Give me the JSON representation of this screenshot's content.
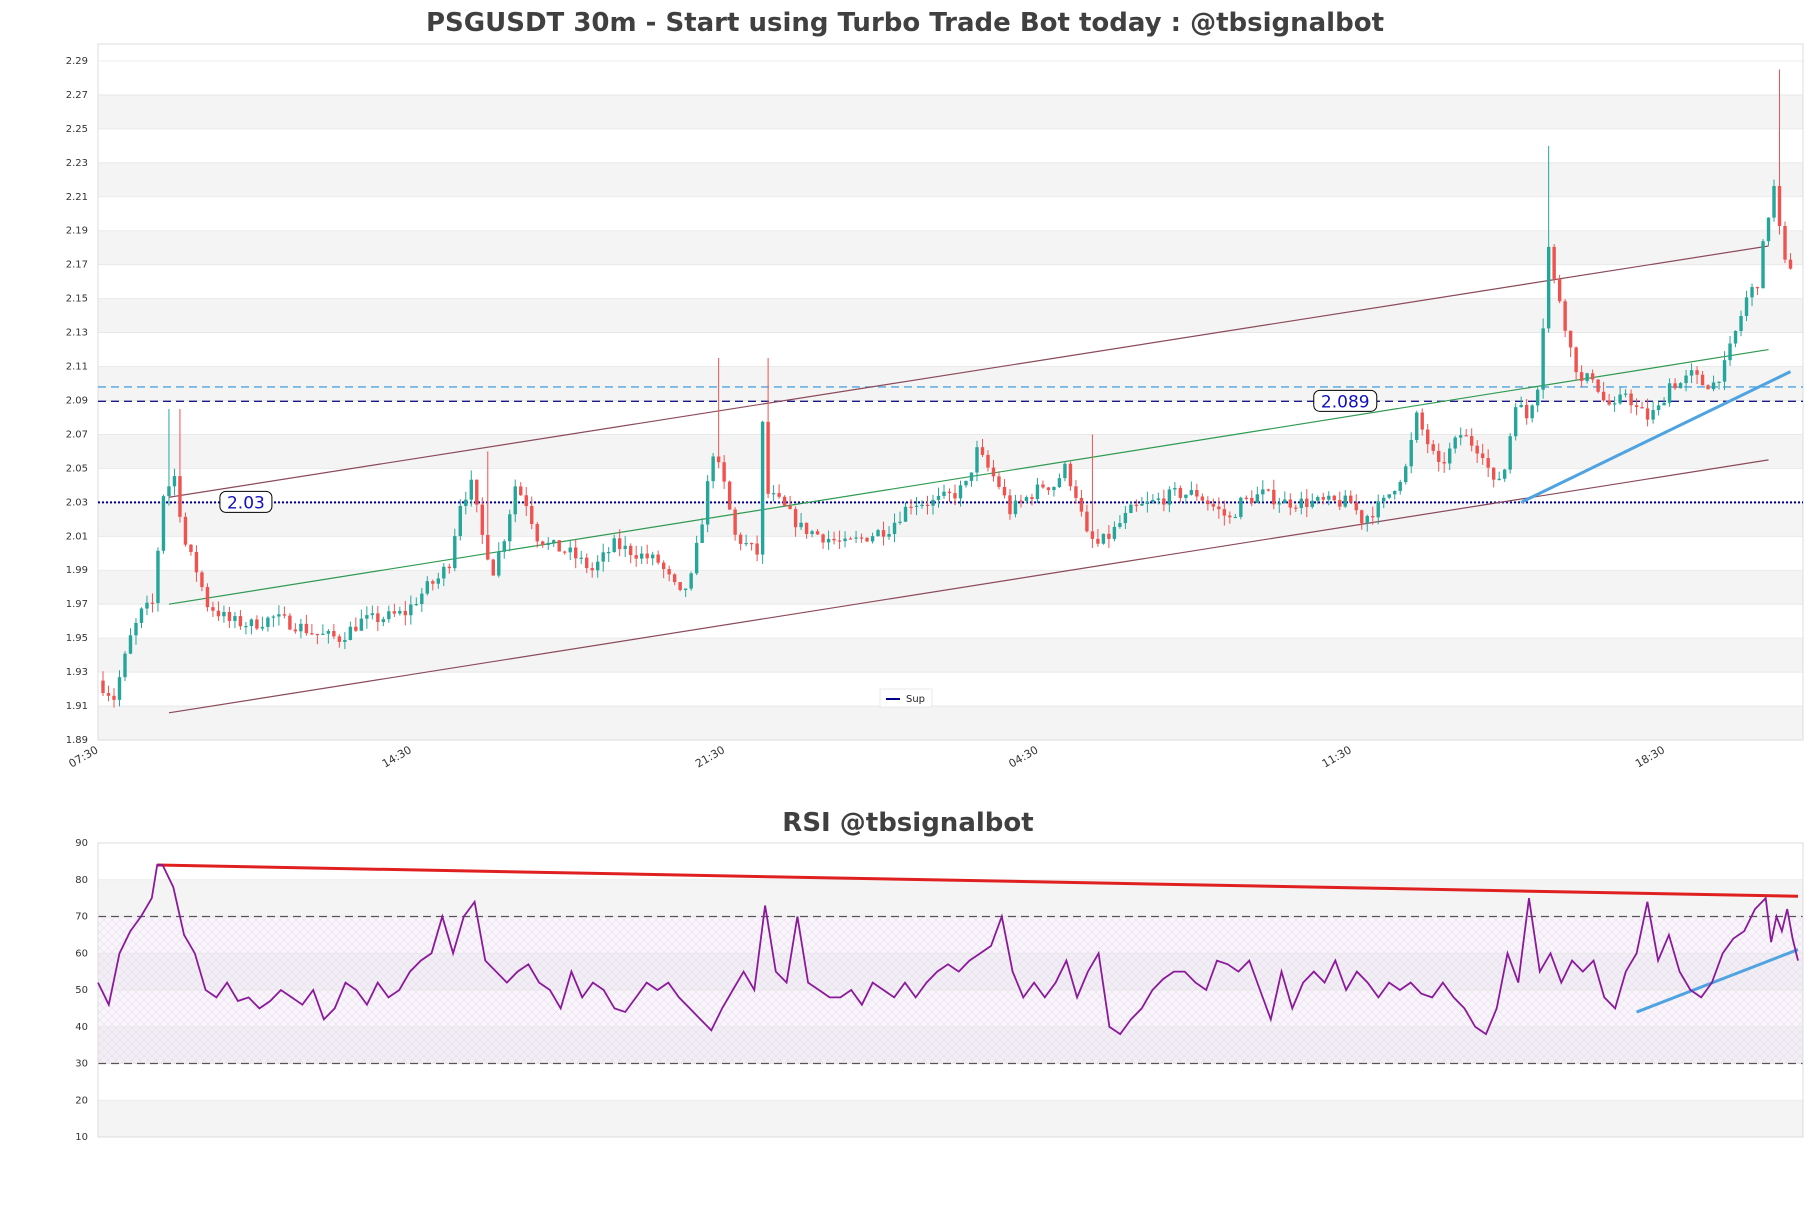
{
  "chart_data": [
    {
      "type": "candlestick",
      "title": "PSGUSDT 30m - Start using Turbo Trade Bot today : @tbsignalbot",
      "ylim": [
        1.89,
        2.3
      ],
      "yticks": [
        "1.89",
        "1.91",
        "1.93",
        "1.95",
        "1.97",
        "1.99",
        "2.01",
        "2.03",
        "2.05",
        "2.07",
        "2.09",
        "2.11",
        "2.13",
        "2.15",
        "2.17",
        "2.19",
        "2.21",
        "2.23",
        "2.25",
        "2.27",
        "2.29"
      ],
      "x_count": 288,
      "xticks": [
        {
          "i": 0,
          "label": "07:30"
        },
        {
          "i": 57,
          "label": "14:30"
        },
        {
          "i": 114,
          "label": "21:30"
        },
        {
          "i": 171,
          "label": "04:30"
        },
        {
          "i": 228,
          "label": "11:30"
        },
        {
          "i": 285,
          "label": "18:30"
        }
      ],
      "anchors": [
        [
          0,
          1.925
        ],
        [
          3,
          1.915
        ],
        [
          6,
          1.95
        ],
        [
          8,
          1.965
        ],
        [
          10,
          1.97
        ],
        [
          12,
          2.035
        ],
        [
          14,
          2.045
        ],
        [
          16,
          2.005
        ],
        [
          18,
          1.99
        ],
        [
          20,
          1.97
        ],
        [
          24,
          1.96
        ],
        [
          28,
          1.958
        ],
        [
          32,
          1.962
        ],
        [
          36,
          1.958
        ],
        [
          40,
          1.952
        ],
        [
          44,
          1.95
        ],
        [
          48,
          1.96
        ],
        [
          52,
          1.962
        ],
        [
          56,
          1.965
        ],
        [
          60,
          1.98
        ],
        [
          62,
          1.985
        ],
        [
          64,
          1.995
        ],
        [
          66,
          2.03
        ],
        [
          68,
          2.04
        ],
        [
          70,
          2.01
        ],
        [
          72,
          1.99
        ],
        [
          74,
          2.01
        ],
        [
          76,
          2.04
        ],
        [
          78,
          2.03
        ],
        [
          80,
          2.01
        ],
        [
          82,
          2.005
        ],
        [
          86,
          2.0
        ],
        [
          90,
          1.99
        ],
        [
          94,
          2.005
        ],
        [
          98,
          2.0
        ],
        [
          102,
          1.995
        ],
        [
          104,
          1.985
        ],
        [
          106,
          1.975
        ],
        [
          108,
          1.985
        ],
        [
          110,
          2.02
        ],
        [
          112,
          2.06
        ],
        [
          114,
          2.04
        ],
        [
          116,
          2.01
        ],
        [
          118,
          2.005
        ],
        [
          120,
          2.0
        ],
        [
          121,
          2.075
        ],
        [
          122,
          2.035
        ],
        [
          124,
          2.03
        ],
        [
          128,
          2.015
        ],
        [
          132,
          2.01
        ],
        [
          136,
          2.005
        ],
        [
          140,
          2.01
        ],
        [
          144,
          2.015
        ],
        [
          148,
          2.03
        ],
        [
          152,
          2.03
        ],
        [
          156,
          2.035
        ],
        [
          158,
          2.04
        ],
        [
          160,
          2.06
        ],
        [
          162,
          2.05
        ],
        [
          164,
          2.04
        ],
        [
          166,
          2.025
        ],
        [
          168,
          2.03
        ],
        [
          172,
          2.04
        ],
        [
          174,
          2.04
        ],
        [
          176,
          2.05
        ],
        [
          178,
          2.035
        ],
        [
          180,
          2.01
        ],
        [
          182,
          2.005
        ],
        [
          184,
          2.01
        ],
        [
          188,
          2.025
        ],
        [
          192,
          2.03
        ],
        [
          196,
          2.035
        ],
        [
          200,
          2.035
        ],
        [
          204,
          2.025
        ],
        [
          206,
          2.02
        ],
        [
          208,
          2.03
        ],
        [
          212,
          2.035
        ],
        [
          216,
          2.03
        ],
        [
          220,
          2.03
        ],
        [
          224,
          2.03
        ],
        [
          228,
          2.03
        ],
        [
          230,
          2.02
        ],
        [
          232,
          2.025
        ],
        [
          234,
          2.03
        ],
        [
          236,
          2.04
        ],
        [
          238,
          2.05
        ],
        [
          240,
          2.08
        ],
        [
          242,
          2.065
        ],
        [
          244,
          2.05
        ],
        [
          246,
          2.06
        ],
        [
          248,
          2.07
        ],
        [
          250,
          2.065
        ],
        [
          252,
          2.06
        ],
        [
          254,
          2.04
        ],
        [
          256,
          2.05
        ],
        [
          258,
          2.09
        ],
        [
          260,
          2.08
        ],
        [
          262,
          2.1
        ],
        [
          263,
          2.135
        ],
        [
          264,
          2.18
        ],
        [
          265,
          2.16
        ],
        [
          266,
          2.15
        ],
        [
          268,
          2.12
        ],
        [
          270,
          2.1
        ],
        [
          272,
          2.105
        ],
        [
          274,
          2.09
        ],
        [
          276,
          2.085
        ],
        [
          278,
          2.095
        ],
        [
          280,
          2.085
        ],
        [
          282,
          2.08
        ],
        [
          284,
          2.085
        ],
        [
          286,
          2.1
        ],
        [
          288,
          2.1
        ],
        [
          290,
          2.105
        ],
        [
          292,
          2.1
        ],
        [
          294,
          2.1
        ],
        [
          296,
          2.11
        ],
        [
          298,
          2.13
        ],
        [
          300,
          2.15
        ],
        [
          302,
          2.16
        ],
        [
          304,
          2.2
        ],
        [
          305,
          2.215
        ],
        [
          306,
          2.19
        ],
        [
          307,
          2.17
        ]
      ],
      "spikes": [
        [
          12,
          2.085
        ],
        [
          14,
          2.085
        ],
        [
          70,
          2.06
        ],
        [
          112,
          2.115
        ],
        [
          121,
          2.115
        ],
        [
          180,
          2.07
        ],
        [
          263,
          2.24
        ],
        [
          305,
          2.285
        ]
      ],
      "levels": [
        {
          "y": 2.03,
          "color": "#00008b",
          "style": "dotted",
          "label": "2.03",
          "label_i": 26
        },
        {
          "y": 2.0895,
          "color": "#1a1a8b",
          "style": "dashed",
          "label": "2.089",
          "label_i": 226
        },
        {
          "y": 2.098,
          "color": "#4fa3e0",
          "style": "dashed",
          "label": ""
        }
      ],
      "trendlines": [
        {
          "x1": 12,
          "y1": 2.033,
          "x2": 303,
          "y2": 2.181,
          "color": "#8b4a5a"
        },
        {
          "x1": 12,
          "y1": 1.906,
          "x2": 303,
          "y2": 2.055,
          "color": "#8b4a5a"
        },
        {
          "x1": 12,
          "y1": 1.97,
          "x2": 303,
          "y2": 2.12,
          "color": "#2e9a50"
        },
        {
          "x1": 258,
          "y1": 2.03,
          "x2": 307,
          "y2": 2.107,
          "color": "#4fa3e0",
          "width": 3
        }
      ],
      "legend": {
        "label": "Sup",
        "color": "#00008b"
      },
      "colors": {
        "up": "#26a69a",
        "down": "#ef5350"
      }
    },
    {
      "type": "line",
      "title": "RSI @tbsignalbot",
      "ylim": [
        10,
        90
      ],
      "yticks": [
        "10",
        "20",
        "30",
        "40",
        "50",
        "60",
        "70",
        "80",
        "90"
      ],
      "x_count": 308,
      "anchors": [
        [
          0,
          52
        ],
        [
          2,
          46
        ],
        [
          4,
          60
        ],
        [
          6,
          66
        ],
        [
          8,
          70
        ],
        [
          10,
          75
        ],
        [
          11,
          84
        ],
        [
          12,
          84
        ],
        [
          14,
          78
        ],
        [
          16,
          65
        ],
        [
          18,
          60
        ],
        [
          20,
          50
        ],
        [
          22,
          48
        ],
        [
          24,
          52
        ],
        [
          26,
          47
        ],
        [
          28,
          48
        ],
        [
          30,
          45
        ],
        [
          32,
          47
        ],
        [
          34,
          50
        ],
        [
          36,
          48
        ],
        [
          38,
          46
        ],
        [
          40,
          50
        ],
        [
          42,
          42
        ],
        [
          44,
          45
        ],
        [
          46,
          52
        ],
        [
          48,
          50
        ],
        [
          50,
          46
        ],
        [
          52,
          52
        ],
        [
          54,
          48
        ],
        [
          56,
          50
        ],
        [
          58,
          55
        ],
        [
          60,
          58
        ],
        [
          62,
          60
        ],
        [
          64,
          70
        ],
        [
          66,
          60
        ],
        [
          68,
          70
        ],
        [
          70,
          74
        ],
        [
          72,
          58
        ],
        [
          74,
          55
        ],
        [
          76,
          52
        ],
        [
          78,
          55
        ],
        [
          80,
          57
        ],
        [
          82,
          52
        ],
        [
          84,
          50
        ],
        [
          86,
          45
        ],
        [
          88,
          55
        ],
        [
          90,
          48
        ],
        [
          92,
          52
        ],
        [
          94,
          50
        ],
        [
          96,
          45
        ],
        [
          98,
          44
        ],
        [
          100,
          48
        ],
        [
          102,
          52
        ],
        [
          104,
          50
        ],
        [
          106,
          52
        ],
        [
          108,
          48
        ],
        [
          110,
          45
        ],
        [
          112,
          42
        ],
        [
          114,
          39
        ],
        [
          116,
          45
        ],
        [
          118,
          50
        ],
        [
          120,
          55
        ],
        [
          122,
          50
        ],
        [
          124,
          73
        ],
        [
          126,
          55
        ],
        [
          128,
          52
        ],
        [
          130,
          70
        ],
        [
          132,
          52
        ],
        [
          134,
          50
        ],
        [
          136,
          48
        ],
        [
          138,
          48
        ],
        [
          140,
          50
        ],
        [
          142,
          46
        ],
        [
          144,
          52
        ],
        [
          146,
          50
        ],
        [
          148,
          48
        ],
        [
          150,
          52
        ],
        [
          152,
          48
        ],
        [
          154,
          52
        ],
        [
          156,
          55
        ],
        [
          158,
          57
        ],
        [
          160,
          55
        ],
        [
          162,
          58
        ],
        [
          164,
          60
        ],
        [
          166,
          62
        ],
        [
          168,
          70
        ],
        [
          170,
          55
        ],
        [
          172,
          48
        ],
        [
          174,
          52
        ],
        [
          176,
          48
        ],
        [
          178,
          52
        ],
        [
          180,
          58
        ],
        [
          182,
          48
        ],
        [
          184,
          55
        ],
        [
          186,
          60
        ],
        [
          188,
          40
        ],
        [
          190,
          38
        ],
        [
          192,
          42
        ],
        [
          194,
          45
        ],
        [
          196,
          50
        ],
        [
          198,
          53
        ],
        [
          200,
          55
        ],
        [
          202,
          55
        ],
        [
          204,
          52
        ],
        [
          206,
          50
        ],
        [
          208,
          58
        ],
        [
          210,
          57
        ],
        [
          212,
          55
        ],
        [
          214,
          58
        ],
        [
          216,
          50
        ],
        [
          218,
          42
        ],
        [
          220,
          55
        ],
        [
          222,
          45
        ],
        [
          224,
          52
        ],
        [
          226,
          55
        ],
        [
          228,
          52
        ],
        [
          230,
          58
        ],
        [
          232,
          50
        ],
        [
          234,
          55
        ],
        [
          236,
          52
        ],
        [
          238,
          48
        ],
        [
          240,
          52
        ],
        [
          242,
          50
        ],
        [
          244,
          52
        ],
        [
          246,
          49
        ],
        [
          248,
          48
        ],
        [
          250,
          52
        ],
        [
          252,
          48
        ],
        [
          254,
          45
        ],
        [
          256,
          40
        ],
        [
          258,
          38
        ],
        [
          260,
          45
        ],
        [
          262,
          60
        ],
        [
          264,
          52
        ],
        [
          266,
          75
        ],
        [
          268,
          55
        ],
        [
          270,
          60
        ],
        [
          272,
          52
        ],
        [
          274,
          58
        ],
        [
          276,
          55
        ],
        [
          278,
          58
        ],
        [
          280,
          48
        ],
        [
          282,
          45
        ],
        [
          284,
          55
        ],
        [
          286,
          60
        ],
        [
          288,
          74
        ],
        [
          290,
          58
        ],
        [
          292,
          65
        ],
        [
          294,
          55
        ],
        [
          296,
          50
        ],
        [
          298,
          48
        ],
        [
          300,
          52
        ],
        [
          302,
          50
        ],
        [
          304,
          48
        ],
        [
          306,
          45
        ],
        [
          307,
          48
        ]
      ],
      "tail": [
        [
          300,
          52
        ],
        [
          302,
          60
        ],
        [
          304,
          64
        ],
        [
          306,
          66
        ],
        [
          308,
          72
        ],
        [
          310,
          75
        ],
        [
          311,
          63
        ],
        [
          312,
          70
        ],
        [
          313,
          66
        ],
        [
          314,
          72
        ],
        [
          315,
          64
        ],
        [
          316,
          58
        ]
      ],
      "bands": {
        "upper": 70,
        "lower": 30
      },
      "trendlines": [
        {
          "x1": 11,
          "y1": 84,
          "x2": 316,
          "y2": 75.5,
          "color": "#e02020",
          "width": 3
        },
        {
          "x1": 286,
          "y1": 44,
          "x2": 316,
          "y2": 61,
          "color": "#4fa3e0",
          "width": 3
        }
      ],
      "color": "#8b1a9b"
    }
  ]
}
